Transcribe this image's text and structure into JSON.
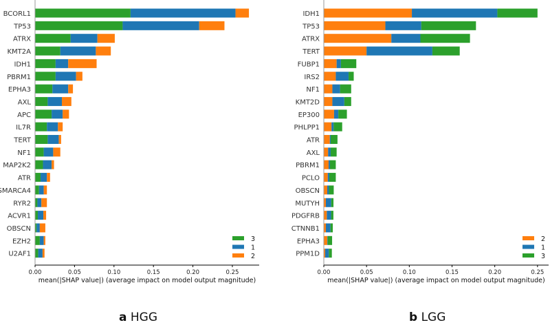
{
  "chart_data": [
    {
      "type": "bar",
      "orientation": "horizontal-stacked",
      "caption_letter": "a",
      "caption_title": "HGG",
      "xlabel": "mean(|SHAP value|) (average impact on model output magnitude)",
      "xlim": [
        0,
        0.284
      ],
      "xticks": [
        "0.00",
        "0.05",
        "0.10",
        "0.15",
        "0.20",
        "0.25"
      ],
      "xtick_values": [
        0,
        0.05,
        0.1,
        0.15,
        0.2,
        0.25
      ],
      "legend_position": "bottom-right",
      "categories": [
        "BCORL1",
        "TP53",
        "ATRX",
        "KMT2A",
        "IDH1",
        "PBRM1",
        "EPHA3",
        "AXL",
        "APC",
        "IL7R",
        "TERT",
        "NF1",
        "MAP2K2",
        "ATR",
        "SMARCA4",
        "RYR2",
        "ACVR1",
        "OBSCN",
        "EZH2",
        "U2AF1"
      ],
      "series": [
        {
          "name": "3",
          "color": "#2ca02c",
          "values": [
            0.121,
            0.111,
            0.045,
            0.032,
            0.026,
            0.026,
            0.022,
            0.016,
            0.021,
            0.015,
            0.016,
            0.011,
            0.01,
            0.007,
            0.005,
            0.003,
            0.0035,
            0.002,
            0.006,
            0.004
          ]
        },
        {
          "name": "1",
          "color": "#1f77b4",
          "values": [
            0.133,
            0.097,
            0.034,
            0.045,
            0.016,
            0.026,
            0.02,
            0.018,
            0.014,
            0.014,
            0.014,
            0.012,
            0.011,
            0.008,
            0.006,
            0.005,
            0.007,
            0.004,
            0.005,
            0.0055
          ]
        },
        {
          "name": "2",
          "color": "#ff7f0e",
          "values": [
            0.017,
            0.032,
            0.022,
            0.019,
            0.036,
            0.008,
            0.006,
            0.012,
            0.008,
            0.006,
            0.003,
            0.009,
            0.003,
            0.004,
            0.004,
            0.007,
            0.0035,
            0.007,
            0.002,
            0.0025
          ]
        }
      ]
    },
    {
      "type": "bar",
      "orientation": "horizontal-stacked",
      "caption_letter": "b",
      "caption_title": "LGG",
      "xlabel": "mean(|SHAP value|) (average impact on model output magnitude)",
      "xlim": [
        0,
        0.263
      ],
      "xticks": [
        "0.00",
        "0.05",
        "0.10",
        "0.15",
        "0.20",
        "0.25"
      ],
      "xtick_values": [
        0,
        0.05,
        0.1,
        0.15,
        0.2,
        0.25
      ],
      "legend_position": "bottom-right",
      "categories": [
        "IDH1",
        "TP53",
        "ATRX",
        "TERT",
        "FUBP1",
        "IRS2",
        "NF1",
        "KMT2D",
        "EP300",
        "PHLPP1",
        "ATR",
        "AXL",
        "PBRM1",
        "PCLO",
        "OBSCN",
        "MUTYH",
        "PDGFRB",
        "CTNNB1",
        "EPHA3",
        "PPM1D"
      ],
      "series": [
        {
          "name": "2",
          "color": "#ff7f0e",
          "values": [
            0.103,
            0.072,
            0.079,
            0.05,
            0.015,
            0.014,
            0.01,
            0.01,
            0.012,
            0.009,
            0.007,
            0.005,
            0.0056,
            0.0046,
            0.004,
            0.0024,
            0.0035,
            0.0024,
            0.004,
            0.0016
          ]
        },
        {
          "name": "1",
          "color": "#1f77b4",
          "values": [
            0.1,
            0.042,
            0.034,
            0.077,
            0.005,
            0.015,
            0.009,
            0.014,
            0.005,
            0.0025,
            0.001,
            0.003,
            0.0016,
            0.0018,
            0.002,
            0.0062,
            0.005,
            0.0054,
            0.0006,
            0.0043
          ]
        },
        {
          "name": "3",
          "color": "#2ca02c",
          "values": [
            0.047,
            0.064,
            0.058,
            0.032,
            0.018,
            0.006,
            0.013,
            0.008,
            0.01,
            0.01,
            0.008,
            0.007,
            0.0068,
            0.0076,
            0.0056,
            0.0027,
            0.0027,
            0.0027,
            0.0051,
            0.0035
          ]
        }
      ]
    }
  ]
}
